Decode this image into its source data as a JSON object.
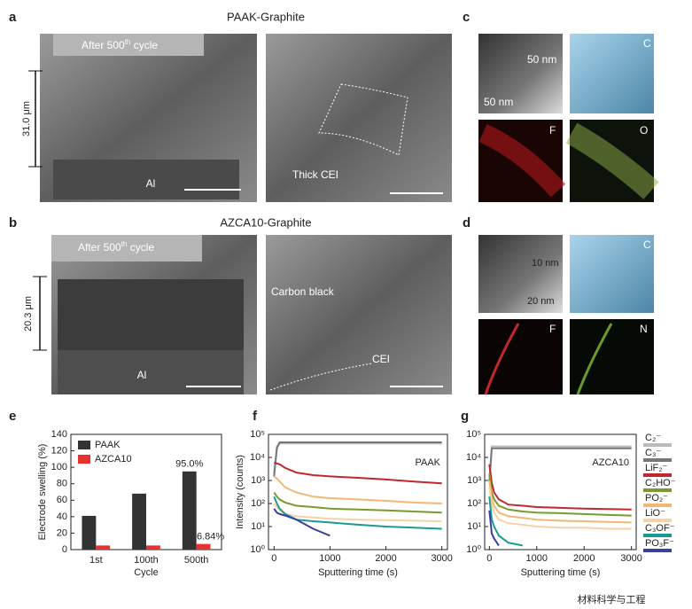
{
  "panel_labels": [
    "a",
    "b",
    "c",
    "d",
    "e",
    "f",
    "g"
  ],
  "panel_a": {
    "title": "PAAK-Graphite",
    "cycle_note": {
      "prefix": "After 500",
      "sup": "th",
      "suffix": " cycle"
    },
    "thickness": "31.0 μm",
    "substrate": "Al",
    "cei_label": "Thick CEI"
  },
  "panel_b": {
    "title": "AZCA10-Graphite",
    "cycle_note": {
      "prefix": "After 500",
      "sup": "th",
      "suffix": " cycle"
    },
    "thickness": "20.3 μm",
    "substrate": "Al",
    "carbon_label": "Carbon black",
    "cei_label": "CEI"
  },
  "panel_c": {
    "layer_scale": "50 nm",
    "scale_bar": "50 nm",
    "maps": [
      "C",
      "F",
      "O"
    ]
  },
  "panel_d": {
    "layer_scale": "10 nm",
    "scale_bar": "20 nm",
    "maps": [
      "C",
      "F",
      "N"
    ]
  },
  "watermark": "材料科学与工程",
  "chart_data": [
    {
      "type": "bar",
      "xlabel": "Cycle",
      "ylabel": "Electrode swelling (%)",
      "categories": [
        "1st",
        "100th",
        "500th"
      ],
      "series": [
        {
          "name": "PAAK",
          "color": "#333333",
          "values": [
            41,
            68,
            95
          ],
          "value_labels": [
            null,
            null,
            "95.0%"
          ]
        },
        {
          "name": "AZCA10",
          "color": "#e8322f",
          "values": [
            5,
            5,
            6.84
          ],
          "value_labels": [
            null,
            null,
            "6.84%"
          ]
        }
      ],
      "ylim": [
        0,
        140
      ],
      "yticks": [
        0,
        20,
        40,
        60,
        80,
        100,
        120,
        140
      ],
      "legend": "upper left",
      "grid": false
    },
    {
      "type": "line",
      "xlabel": "Sputtering time (s)",
      "ylabel": "Intensity (counts)",
      "annotation": "PAAK",
      "log_y": true,
      "grid": false,
      "x": [
        0,
        50,
        100,
        200,
        400,
        700,
        1000,
        1500,
        2000,
        2500,
        3000
      ],
      "xlim": [
        -100,
        3100
      ],
      "xticks": [
        0,
        1000,
        2000,
        3000
      ],
      "ylim": [
        1,
        100000
      ],
      "yticks": [
        {
          "value": 1,
          "label": "10⁰"
        },
        {
          "value": 10,
          "label": "10¹"
        },
        {
          "value": 100,
          "label": "10²"
        },
        {
          "value": 1000,
          "label": "10³"
        },
        {
          "value": 10000,
          "label": "10⁴"
        },
        {
          "value": 100000,
          "label": "10⁵"
        }
      ],
      "series": [
        {
          "color": "#bbbbbb",
          "values": [
            2000,
            30000,
            40000,
            40000,
            40000,
            40000,
            40000,
            40000,
            40000,
            40000,
            40000
          ]
        },
        {
          "color": "#777777",
          "values": [
            1500,
            25000,
            45000,
            45000,
            45000,
            45000,
            45000,
            45000,
            45000,
            45000,
            45000
          ]
        },
        {
          "color": "#c0282d",
          "values": [
            6000,
            5500,
            5000,
            3500,
            2200,
            1700,
            1500,
            1300,
            1100,
            900,
            750
          ]
        },
        {
          "color": "#7a9a2e",
          "values": [
            300,
            200,
            150,
            110,
            80,
            70,
            60,
            55,
            50,
            45,
            40
          ]
        },
        {
          "color": "#f2b774",
          "values": [
            1500,
            1200,
            900,
            500,
            300,
            200,
            170,
            150,
            130,
            110,
            100
          ]
        },
        {
          "color": "#f7d2a8",
          "values": [
            100,
            70,
            50,
            35,
            28,
            25,
            22,
            20,
            19,
            18,
            17
          ]
        },
        {
          "color": "#1a9a94",
          "values": [
            200,
            100,
            60,
            35,
            20,
            17,
            15,
            12,
            10,
            9,
            8
          ]
        },
        {
          "color": "#3c3f9e",
          "values": [
            60,
            40,
            35,
            30,
            20,
            8,
            4,
            null,
            null,
            null,
            null
          ]
        }
      ]
    },
    {
      "type": "line",
      "xlabel": "Sputtering time (s)",
      "annotation": "AZCA10",
      "log_y": true,
      "grid": false,
      "legend": "outside right",
      "x": [
        0,
        50,
        100,
        200,
        400,
        700,
        1000,
        1500,
        2000,
        2500,
        3000
      ],
      "xlim": [
        -100,
        3100
      ],
      "xticks": [
        0,
        1000,
        2000,
        3000
      ],
      "ylim": [
        1,
        100000
      ],
      "yticks": [
        {
          "value": 1,
          "label": "10⁰"
        },
        {
          "value": 10,
          "label": "10¹"
        },
        {
          "value": 100,
          "label": "10²"
        },
        {
          "value": 1000,
          "label": "10³"
        },
        {
          "value": 10000,
          "label": "10⁴"
        },
        {
          "value": 100000,
          "label": "10⁵"
        }
      ],
      "series": [
        {
          "name": "C₂⁻",
          "color": "#bbbbbb",
          "values": [
            1000,
            30000,
            30000,
            30000,
            30000,
            30000,
            30000,
            30000,
            30000,
            30000,
            30000
          ]
        },
        {
          "name": "C₃⁻",
          "color": "#777777",
          "values": [
            800,
            25000,
            25000,
            25000,
            25000,
            25000,
            25000,
            25000,
            25000,
            25000,
            25000
          ]
        },
        {
          "name": "LiF₂⁻",
          "color": "#c0282d",
          "values": [
            5000,
            800,
            300,
            150,
            90,
            80,
            70,
            65,
            60,
            58,
            55
          ]
        },
        {
          "name": "C₂HO⁻",
          "color": "#7a9a2e",
          "values": [
            2000,
            300,
            150,
            80,
            55,
            45,
            40,
            38,
            35,
            32,
            30
          ]
        },
        {
          "name": "PO₂⁻",
          "color": "#f2b774",
          "values": [
            1000,
            150,
            80,
            40,
            28,
            24,
            20,
            18,
            17,
            16,
            15
          ]
        },
        {
          "name": "LiO⁻",
          "color": "#f7d2a8",
          "values": [
            500,
            80,
            40,
            20,
            14,
            12,
            10,
            9,
            9,
            8,
            8
          ]
        },
        {
          "name": "C₃OF⁻",
          "color": "#1a9a94",
          "values": [
            200,
            20,
            10,
            4,
            2,
            1.5,
            null,
            null,
            null,
            null,
            null
          ]
        },
        {
          "name": "PO₃F⁻",
          "color": "#3c3f9e",
          "values": [
            50,
            5,
            3,
            1.5,
            null,
            null,
            null,
            null,
            null,
            null,
            null
          ]
        }
      ]
    }
  ]
}
